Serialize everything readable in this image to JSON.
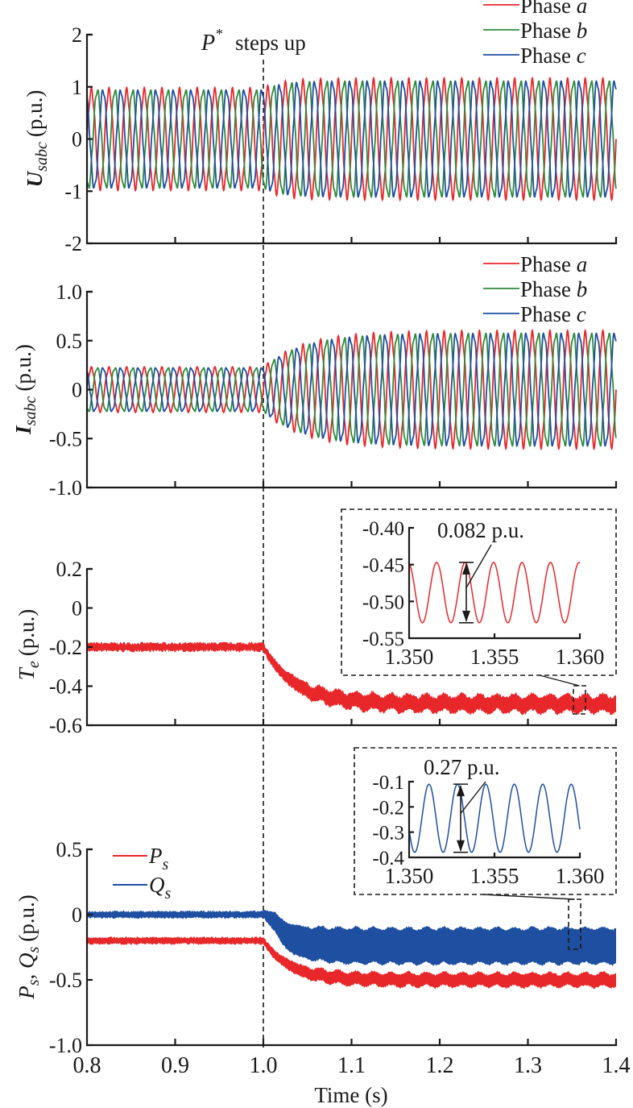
{
  "figure": {
    "annotation_event": "steps up",
    "annotation_symbol": "P",
    "annotation_superscript": "*",
    "event_time": 1.0,
    "xlabel": "Time (s)",
    "x_ticks": [
      "0.8",
      "0.9",
      "1.0",
      "1.1",
      "1.2",
      "1.3",
      "1.4"
    ]
  },
  "colors": {
    "phase_a": "#e8272b",
    "phase_b": "#2e8b3e",
    "phase_c": "#1f4fa0",
    "Ps": "#e8272b",
    "Qs": "#1f4fa0"
  },
  "chart_data": [
    {
      "type": "line",
      "id": "voltage",
      "ylabel_main": "U",
      "ylabel_sub": "sabc",
      "ylabel_unit": "(p.u.)",
      "xlim": [
        0.8,
        1.4
      ],
      "ylim": [
        -2,
        2
      ],
      "y_ticks": [
        "2",
        "1",
        "0",
        "-1",
        "-2"
      ],
      "y_tick_values": [
        2,
        1,
        0,
        -1,
        -2
      ],
      "legend": [
        {
          "label": "Phase ",
          "var": "a"
        },
        {
          "label": "Phase ",
          "var": "b"
        },
        {
          "label": "Phase ",
          "var": "c"
        }
      ],
      "legend_position": "top-right",
      "series": [
        {
          "name": "Phase a",
          "amplitude_before": 0.93,
          "amplitude_after": 1.1
        },
        {
          "name": "Phase b",
          "amplitude_before": 0.93,
          "amplitude_after": 1.1
        },
        {
          "name": "Phase c",
          "amplitude_before": 0.93,
          "amplitude_after": 1.1
        }
      ],
      "frequency_hz": 50
    },
    {
      "type": "line",
      "id": "current",
      "ylabel_main": "I",
      "ylabel_sub": "sabc",
      "ylabel_unit": "(p.u.)",
      "xlim": [
        0.8,
        1.4
      ],
      "ylim": [
        -1.0,
        1.0
      ],
      "y_ticks": [
        "1.0",
        "0.5",
        "0",
        "-0.5",
        "-1.0"
      ],
      "y_tick_values": [
        1.0,
        0.5,
        0,
        -0.5,
        -1.0
      ],
      "legend": [
        {
          "label": "Phase ",
          "var": "a"
        },
        {
          "label": "Phase ",
          "var": "b"
        },
        {
          "label": "Phase ",
          "var": "c"
        }
      ],
      "legend_position": "top-right",
      "series": [
        {
          "name": "Phase a",
          "amplitude_before": 0.22,
          "amplitude_after": 0.57
        },
        {
          "name": "Phase b",
          "amplitude_before": 0.22,
          "amplitude_after": 0.57
        },
        {
          "name": "Phase c",
          "amplitude_before": 0.22,
          "amplitude_after": 0.57
        }
      ],
      "frequency_hz": 50
    },
    {
      "type": "line",
      "id": "torque",
      "ylabel_main": "T",
      "ylabel_sub": "e",
      "ylabel_unit": "(p.u.)",
      "xlim": [
        0.8,
        1.4
      ],
      "ylim": [
        -0.6,
        0.2
      ],
      "y_ticks": [
        "0.2",
        "0",
        "-0.2",
        "-0.4",
        "-0.6"
      ],
      "y_tick_values": [
        0.2,
        0,
        -0.2,
        -0.4,
        -0.6
      ],
      "series": [
        {
          "name": "Te",
          "mean_before": -0.2,
          "mean_after": -0.49,
          "ripple_before": 0.04,
          "ripple_after": 0.082
        }
      ],
      "inset": {
        "xlim": [
          1.35,
          1.36
        ],
        "ylim": [
          -0.55,
          -0.4
        ],
        "x_ticks": [
          "1.350",
          "1.355",
          "1.360"
        ],
        "y_ticks": [
          "-0.40",
          "-0.45",
          "-0.50",
          "-0.55"
        ],
        "annotation": "0.082 p.u.",
        "peak": -0.447,
        "trough": -0.529,
        "cycles": 6
      }
    },
    {
      "type": "line",
      "id": "power",
      "ylabel_main": "P",
      "ylabel_sub": "s",
      "ylabel_main2": "Q",
      "ylabel_sub2": "s",
      "ylabel_unit": "(p.u.)",
      "xlim": [
        0.8,
        1.4
      ],
      "ylim": [
        -1.0,
        0.5
      ],
      "y_ticks": [
        "0.5",
        "0",
        "-0.5",
        "-1.0"
      ],
      "y_tick_values": [
        0.5,
        0,
        -0.5,
        -1.0
      ],
      "legend": [
        {
          "label": "P",
          "sub": "s"
        },
        {
          "label": "Q",
          "sub": "s"
        }
      ],
      "legend_position": "top-left",
      "series": [
        {
          "name": "Ps",
          "mean_before": -0.2,
          "mean_after": -0.5,
          "ripple_before": 0.05,
          "ripple_after": 0.1
        },
        {
          "name": "Qs",
          "mean_before": 0.0,
          "mean_after": -0.24,
          "ripple_before": 0.05,
          "ripple_after": 0.27
        }
      ],
      "inset": {
        "xlim": [
          1.35,
          1.36
        ],
        "ylim": [
          -0.4,
          -0.1
        ],
        "x_ticks": [
          "1.350",
          "1.355",
          "1.360"
        ],
        "y_ticks": [
          "-0.1",
          "-0.2",
          "-0.3",
          "-0.4"
        ],
        "annotation": "0.27 p.u.",
        "peak": -0.11,
        "trough": -0.38,
        "cycles": 6
      }
    }
  ]
}
